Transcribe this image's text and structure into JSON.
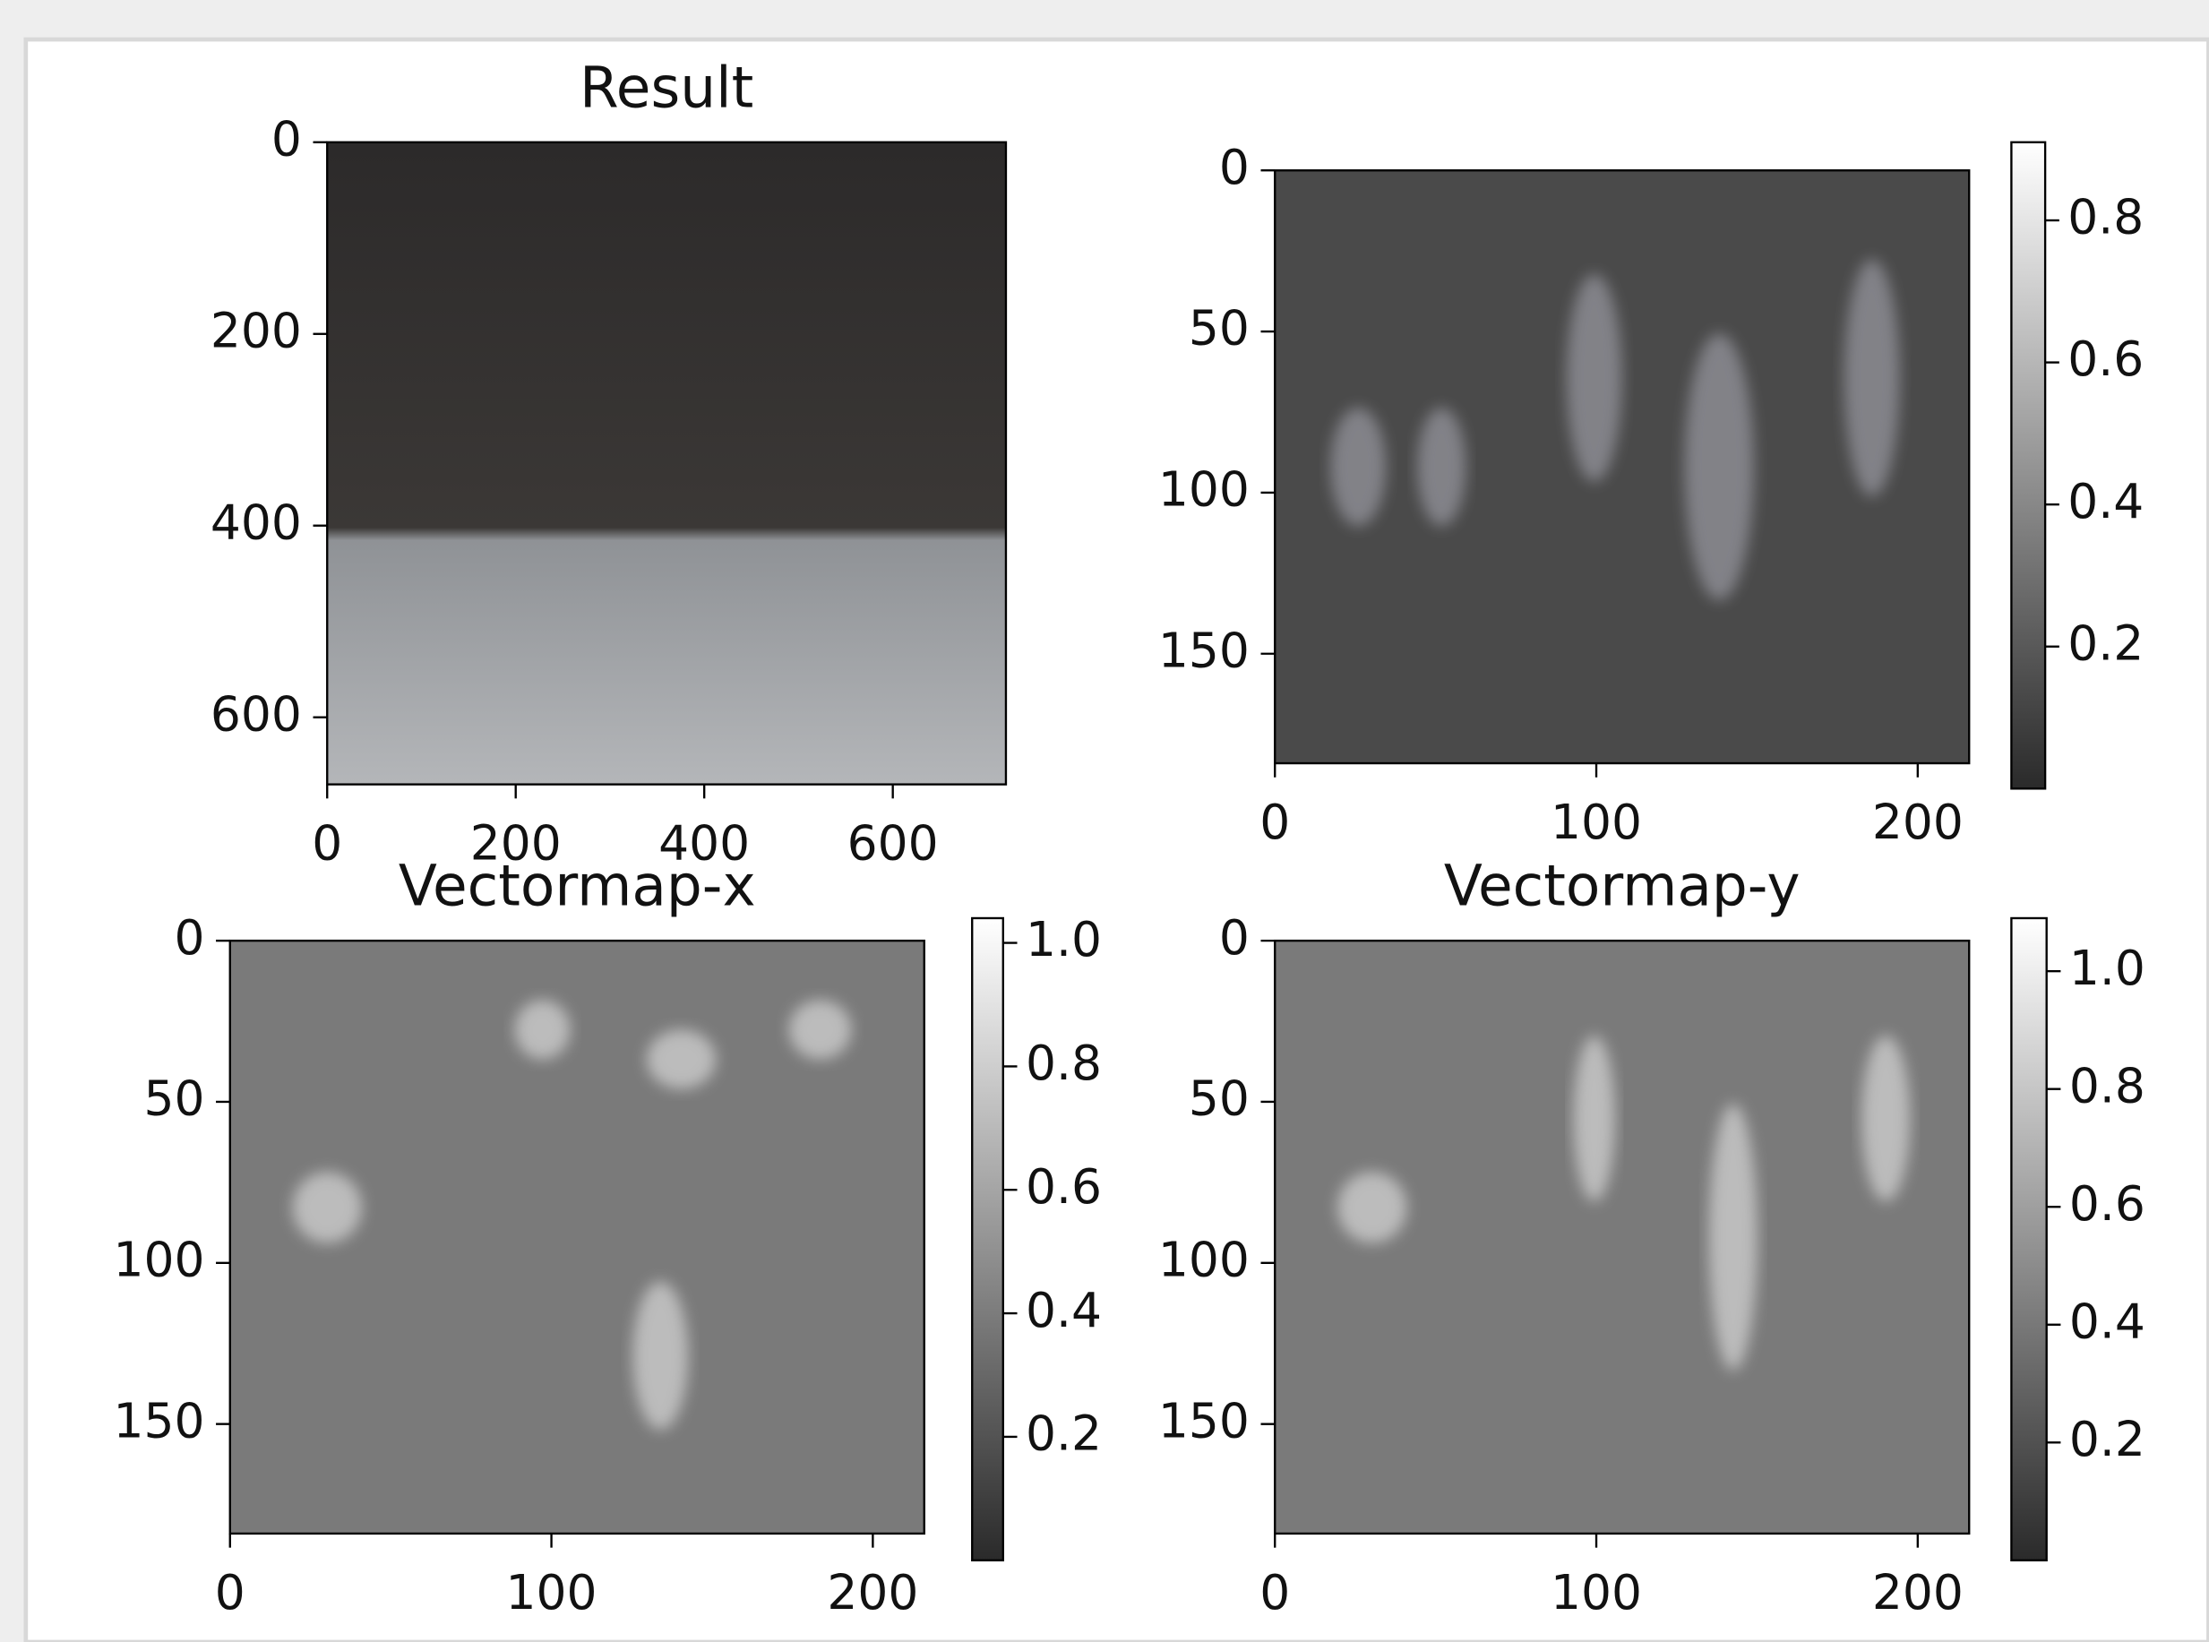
{
  "chart_data": [
    {
      "type": "image",
      "title": "Result",
      "xlim": [
        0,
        720
      ],
      "ylim": [
        670,
        0
      ],
      "xticks": [
        0,
        200,
        400,
        600
      ],
      "yticks": [
        0,
        200,
        400,
        600
      ]
    },
    {
      "type": "image",
      "xlim": [
        0,
        216
      ],
      "ylim": [
        184,
        0
      ],
      "xticks": [
        0,
        100,
        200
      ],
      "yticks": [
        0,
        50,
        100,
        150
      ],
      "colorbar": {
        "lim": [
          0,
          0.91
        ],
        "ticks": [
          0.2,
          0.4,
          0.6,
          0.8
        ]
      }
    },
    {
      "type": "image",
      "title": "Vectormap-x",
      "xlim": [
        0,
        216
      ],
      "ylim": [
        184,
        0
      ],
      "xticks": [
        0,
        100,
        200
      ],
      "yticks": [
        0,
        50,
        100,
        150
      ],
      "colorbar": {
        "lim": [
          0,
          1.04
        ],
        "ticks": [
          0.2,
          0.4,
          0.6,
          0.8,
          {
            "value": 1,
            "label": "1.0"
          }
        ]
      }
    },
    {
      "type": "image",
      "title": "Vectormap-y",
      "xlim": [
        0,
        216
      ],
      "ylim": [
        184,
        0
      ],
      "xticks": [
        0,
        100,
        200
      ],
      "yticks": [
        0,
        50,
        100,
        150
      ],
      "colorbar": {
        "lim": [
          0,
          1.09
        ],
        "ticks": [
          0.2,
          0.4,
          0.6,
          0.8,
          {
            "value": 1,
            "label": "1.0"
          }
        ]
      }
    }
  ]
}
